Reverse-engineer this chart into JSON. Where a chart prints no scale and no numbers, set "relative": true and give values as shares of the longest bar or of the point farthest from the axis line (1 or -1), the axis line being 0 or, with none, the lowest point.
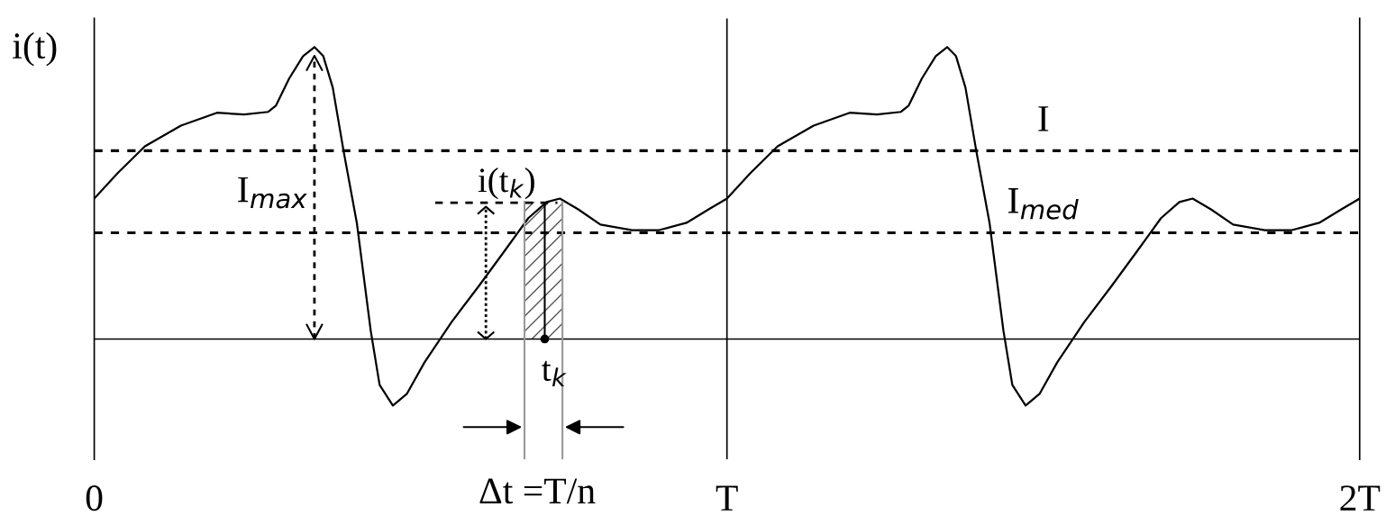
{
  "chart_data": {
    "type": "line",
    "relative": true,
    "ylabel": "i(t)",
    "x": [
      0,
      0.037,
      0.08,
      0.137,
      0.194,
      0.237,
      0.275,
      0.287,
      0.308,
      0.33,
      0.348,
      0.362,
      0.377,
      0.394,
      0.415,
      0.437,
      0.451,
      0.472,
      0.494,
      0.522,
      0.565,
      0.608,
      0.65,
      0.686,
      0.715,
      0.736,
      0.765,
      0.8,
      0.85,
      0.893,
      0.936,
      0.971,
      1.0,
      1.037,
      1.08,
      1.137,
      1.194,
      1.237,
      1.275,
      1.287,
      1.308,
      1.33,
      1.348,
      1.362,
      1.377,
      1.394,
      1.415,
      1.437,
      1.451,
      1.472,
      1.494,
      1.522,
      1.565,
      1.608,
      1.65,
      1.686,
      1.715,
      1.736,
      1.765,
      1.8,
      1.85,
      1.893,
      1.936,
      1.971,
      2.0
    ],
    "series": [
      {
        "color": "#000000",
        "values": [
          0.481,
          0.568,
          0.66,
          0.731,
          0.775,
          0.769,
          0.778,
          0.799,
          0.892,
          0.969,
          1.0,
          0.969,
          0.861,
          0.645,
          0.398,
          0.028,
          -0.157,
          -0.228,
          -0.188,
          -0.08,
          0.059,
          0.182,
          0.306,
          0.414,
          0.469,
          0.481,
          0.444,
          0.392,
          0.373,
          0.373,
          0.398,
          0.444,
          0.481,
          0.568,
          0.66,
          0.731,
          0.775,
          0.769,
          0.778,
          0.799,
          0.892,
          0.969,
          1.0,
          0.969,
          0.861,
          0.645,
          0.398,
          0.028,
          -0.157,
          -0.228,
          -0.188,
          -0.08,
          0.059,
          0.182,
          0.306,
          0.414,
          0.469,
          0.481,
          0.444,
          0.392,
          0.373,
          0.373,
          0.398,
          0.444,
          0.481
        ]
      }
    ],
    "xlim": [
      0,
      2
    ],
    "xticks": [
      {
        "value": 0,
        "label": "0"
      },
      {
        "value": 1,
        "label": "T"
      },
      {
        "value": 2,
        "label": "2T"
      }
    ],
    "ref_lines": [
      {
        "axis": "y",
        "value": 0.645,
        "label": "I",
        "line_style": "dashed"
      },
      {
        "axis": "y",
        "value": 0.364,
        "label": "I$_{med}$",
        "line_style": "dashed"
      },
      {
        "axis": "x",
        "value": 1,
        "line_style": "solid"
      }
    ],
    "bands": [
      {
        "axis": "x",
        "from": 0.68,
        "to": 0.74,
        "label": "Δt =T/n"
      }
    ],
    "annotations": [
      "I$_{max}$",
      {
        "text": "i(t$_{k}$)",
        "x": 0.712,
        "y": 0.467
      },
      {
        "text": "t$_{k}$",
        "x": 0.712,
        "y": 0
      }
    ],
    "marker": "none",
    "line_style": "solid",
    "grid": false,
    "legend": false
  }
}
